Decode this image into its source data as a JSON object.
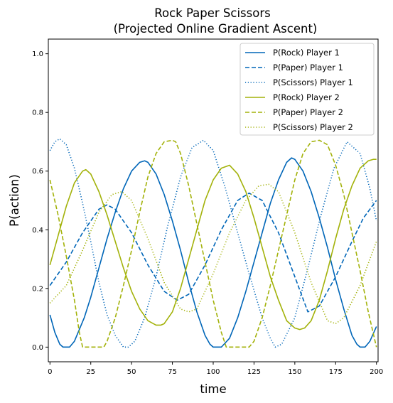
{
  "chart_data": {
    "type": "line",
    "title_line1": "Rock Paper Scissors",
    "title_line2": "(Projected Online Gradient Ascent)",
    "xlabel": "time",
    "ylabel": "P(action)",
    "xlim": [
      -1,
      201
    ],
    "ylim": [
      -0.05,
      1.05
    ],
    "xticks": [
      0,
      25,
      50,
      75,
      100,
      125,
      150,
      175,
      200
    ],
    "xtick_labels": [
      "0",
      "25",
      "50",
      "75",
      "100",
      "125",
      "150",
      "175",
      "200"
    ],
    "yticks": [
      0.0,
      0.2,
      0.4,
      0.6,
      0.8,
      1.0
    ],
    "ytick_labels": [
      "0.0",
      "0.2",
      "0.4",
      "0.6",
      "0.8",
      "1.0"
    ],
    "grid": false,
    "legend_position": "top-right",
    "colors": {
      "player1": "#0066b8",
      "player2": "#a3b20a"
    },
    "series": [
      {
        "name": "P(Rock) Player 1",
        "color": "#0066b8",
        "dash": "solid",
        "x": [
          0,
          3,
          6,
          8,
          10,
          12,
          15,
          18,
          21,
          25,
          30,
          35,
          40,
          45,
          50,
          55,
          58,
          60,
          65,
          70,
          75,
          80,
          85,
          90,
          95,
          98,
          100,
          103,
          105,
          110,
          115,
          120,
          125,
          130,
          135,
          140,
          145,
          148,
          150,
          155,
          160,
          165,
          170,
          175,
          180,
          185,
          188,
          190,
          193,
          196,
          200
        ],
        "y": [
          0.11,
          0.05,
          0.01,
          0.0,
          0.0,
          0.0,
          0.02,
          0.06,
          0.1,
          0.17,
          0.27,
          0.37,
          0.46,
          0.54,
          0.6,
          0.63,
          0.635,
          0.63,
          0.59,
          0.52,
          0.43,
          0.33,
          0.22,
          0.12,
          0.04,
          0.01,
          0.0,
          0.0,
          0.0,
          0.03,
          0.1,
          0.19,
          0.29,
          0.39,
          0.49,
          0.57,
          0.63,
          0.645,
          0.64,
          0.6,
          0.53,
          0.44,
          0.34,
          0.23,
          0.13,
          0.04,
          0.01,
          0.0,
          0.0,
          0.02,
          0.07
        ]
      },
      {
        "name": "P(Paper) Player 1",
        "color": "#0066b8",
        "dash": "dashed",
        "x": [
          0,
          10,
          20,
          30,
          35,
          40,
          50,
          60,
          70,
          78,
          85,
          95,
          105,
          115,
          122,
          130,
          140,
          150,
          158,
          165,
          175,
          185,
          192,
          200
        ],
        "y": [
          0.21,
          0.29,
          0.39,
          0.47,
          0.485,
          0.47,
          0.39,
          0.28,
          0.19,
          0.16,
          0.18,
          0.28,
          0.4,
          0.5,
          0.525,
          0.5,
          0.39,
          0.24,
          0.12,
          0.14,
          0.24,
          0.36,
          0.44,
          0.5
        ]
      },
      {
        "name": "P(Scissors) Player 1",
        "color": "#0066b8",
        "dash": "dotted",
        "x": [
          0,
          3,
          6,
          10,
          15,
          20,
          25,
          30,
          35,
          40,
          45,
          48,
          52,
          58,
          65,
          72,
          80,
          87,
          94,
          100,
          107,
          115,
          122,
          130,
          135,
          138,
          142,
          150,
          158,
          166,
          174,
          182,
          190,
          196,
          200
        ],
        "y": [
          0.67,
          0.7,
          0.71,
          0.69,
          0.61,
          0.49,
          0.36,
          0.22,
          0.11,
          0.04,
          0.0,
          0.0,
          0.02,
          0.1,
          0.24,
          0.41,
          0.58,
          0.68,
          0.705,
          0.67,
          0.55,
          0.39,
          0.25,
          0.1,
          0.03,
          0.0,
          0.01,
          0.1,
          0.27,
          0.45,
          0.61,
          0.7,
          0.66,
          0.54,
          0.43
        ]
      },
      {
        "name": "P(Rock) Player 2",
        "color": "#a3b20a",
        "dash": "solid",
        "x": [
          0,
          5,
          10,
          15,
          20,
          22,
          25,
          30,
          35,
          40,
          45,
          50,
          55,
          60,
          65,
          68,
          70,
          75,
          80,
          85,
          90,
          95,
          100,
          105,
          110,
          115,
          120,
          125,
          130,
          135,
          140,
          145,
          150,
          153,
          156,
          160,
          165,
          170,
          175,
          180,
          185,
          190,
          195,
          198,
          200
        ],
        "y": [
          0.28,
          0.38,
          0.48,
          0.56,
          0.6,
          0.605,
          0.59,
          0.53,
          0.45,
          0.36,
          0.27,
          0.19,
          0.13,
          0.09,
          0.075,
          0.075,
          0.08,
          0.12,
          0.2,
          0.3,
          0.4,
          0.5,
          0.57,
          0.61,
          0.62,
          0.59,
          0.53,
          0.44,
          0.34,
          0.24,
          0.16,
          0.09,
          0.065,
          0.06,
          0.065,
          0.09,
          0.16,
          0.26,
          0.37,
          0.47,
          0.55,
          0.61,
          0.635,
          0.64,
          0.64
        ]
      },
      {
        "name": "P(Paper) Player 2",
        "color": "#a3b20a",
        "dash": "dashed",
        "x": [
          0,
          5,
          10,
          15,
          18,
          20,
          25,
          30,
          33,
          35,
          40,
          45,
          50,
          55,
          60,
          65,
          70,
          75,
          77,
          80,
          85,
          90,
          95,
          100,
          105,
          108,
          110,
          115,
          120,
          122,
          125,
          130,
          135,
          140,
          145,
          150,
          155,
          160,
          165,
          170,
          175,
          180,
          185,
          190,
          195,
          200
        ],
        "y": [
          0.57,
          0.45,
          0.31,
          0.16,
          0.05,
          0.0,
          0.0,
          0.0,
          0.0,
          0.02,
          0.1,
          0.21,
          0.33,
          0.46,
          0.58,
          0.66,
          0.7,
          0.705,
          0.7,
          0.66,
          0.55,
          0.42,
          0.29,
          0.16,
          0.05,
          0.0,
          0.0,
          0.0,
          0.0,
          0.0,
          0.02,
          0.1,
          0.21,
          0.33,
          0.45,
          0.57,
          0.66,
          0.7,
          0.705,
          0.69,
          0.62,
          0.52,
          0.39,
          0.26,
          0.12,
          0.0
        ]
      },
      {
        "name": "P(Scissors) Player 2",
        "color": "#a3b20a",
        "dash": "dotted",
        "x": [
          0,
          10,
          20,
          30,
          38,
          44,
          50,
          60,
          70,
          80,
          85,
          90,
          100,
          110,
          120,
          128,
          134,
          140,
          150,
          160,
          170,
          175,
          180,
          190,
          200
        ],
        "y": [
          0.15,
          0.21,
          0.33,
          0.46,
          0.52,
          0.53,
          0.5,
          0.37,
          0.22,
          0.13,
          0.12,
          0.13,
          0.25,
          0.39,
          0.5,
          0.55,
          0.555,
          0.53,
          0.39,
          0.22,
          0.09,
          0.08,
          0.1,
          0.21,
          0.36
        ]
      }
    ]
  }
}
